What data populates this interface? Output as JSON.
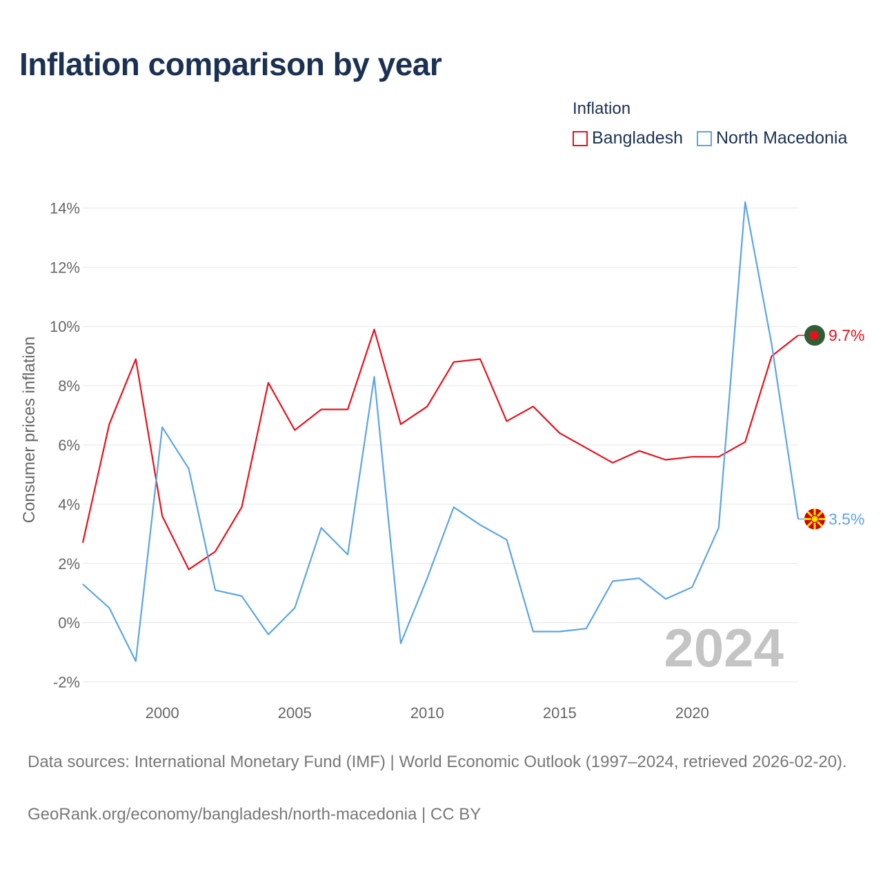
{
  "title": "Inflation comparison by year",
  "legend": {
    "title": "Inflation",
    "items": [
      {
        "label": "Bangladesh",
        "color": "#e8101b"
      },
      {
        "label": "North Macedonia",
        "color": "#5ba5e6"
      }
    ]
  },
  "source": {
    "line1": "Data sources: International Monetary Fund (IMF) | World Economic Outlook (1997–2024, retrieved 2026-02-20).",
    "line2": "GeoRank.org/economy/bangladesh/north-macedonia | CC BY"
  },
  "chart_data": {
    "type": "line",
    "title": "Inflation comparison by year",
    "xlabel": "",
    "ylabel": "Consumer prices inflation",
    "xlim": [
      1997,
      2024
    ],
    "ylim": [
      -2.5,
      14.5
    ],
    "y_ticks": [
      -2,
      0,
      2,
      4,
      6,
      8,
      10,
      12,
      14
    ],
    "y_tick_labels": [
      "-2%",
      "0%",
      "2%",
      "4%",
      "6%",
      "8%",
      "10%",
      "12%",
      "14%"
    ],
    "x_ticks": [
      2000,
      2005,
      2010,
      2015,
      2020
    ],
    "x_tick_labels": [
      "2000",
      "2005",
      "2010",
      "2015",
      "2020"
    ],
    "grid": true,
    "watermark": "2024",
    "x": [
      1997,
      1998,
      1999,
      2000,
      2001,
      2002,
      2003,
      2004,
      2005,
      2006,
      2007,
      2008,
      2009,
      2010,
      2011,
      2012,
      2013,
      2014,
      2015,
      2016,
      2017,
      2018,
      2019,
      2020,
      2021,
      2022,
      2023,
      2024
    ],
    "series": [
      {
        "name": "Bangladesh",
        "color": "#e8101b",
        "end_label": "9.7%",
        "values": [
          2.7,
          6.7,
          8.9,
          3.6,
          1.8,
          2.4,
          3.9,
          8.1,
          6.5,
          7.2,
          7.2,
          9.9,
          6.7,
          7.3,
          8.8,
          8.9,
          6.8,
          7.3,
          6.4,
          5.9,
          5.4,
          5.8,
          5.5,
          5.6,
          5.6,
          6.1,
          9.0,
          9.7
        ]
      },
      {
        "name": "North Macedonia",
        "color": "#5ba5e6",
        "end_label": "3.5%",
        "values": [
          1.3,
          0.5,
          -1.3,
          6.6,
          5.2,
          1.1,
          0.9,
          -0.4,
          0.5,
          3.2,
          2.3,
          8.3,
          -0.7,
          1.5,
          3.9,
          3.3,
          2.8,
          -0.3,
          -0.3,
          -0.2,
          1.4,
          1.5,
          0.8,
          1.2,
          3.2,
          14.2,
          9.4,
          3.5
        ]
      }
    ]
  }
}
